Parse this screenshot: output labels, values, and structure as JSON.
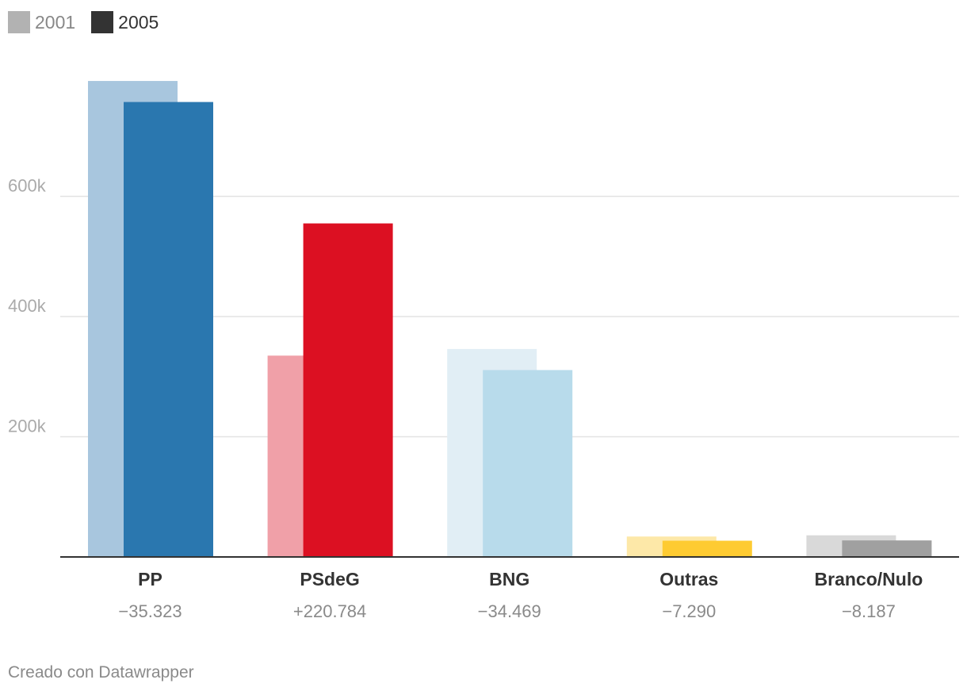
{
  "chart_data": {
    "type": "bar",
    "categories": [
      "PP",
      "PSdeG",
      "BNG",
      "Outras",
      "Branco/Nulo"
    ],
    "change_labels": [
      "−35.323",
      "+220.784",
      "−34.469",
      "−7.290",
      "−8.187"
    ],
    "series": [
      {
        "name": "2001",
        "values": [
          792000,
          335000,
          346000,
          34000,
          36000
        ]
      },
      {
        "name": "2005",
        "values": [
          757000,
          555000,
          311000,
          27000,
          27500
        ]
      }
    ],
    "colors_2001": [
      "#a8c6de",
      "#f0a0a8",
      "#e1eef5",
      "#fde8a8",
      "#d9d9d9"
    ],
    "colors_2005": [
      "#2a77af",
      "#dc1022",
      "#b8dbeb",
      "#fecb32",
      "#a0a0a0"
    ],
    "legend_colors": [
      "#b2b2b2",
      "#333333"
    ],
    "yticks": [
      200000,
      400000,
      600000
    ],
    "ytick_labels": [
      "200k",
      "400k",
      "600k"
    ],
    "ylim": [
      0,
      830000
    ],
    "grid": true,
    "legend_position": "top-left",
    "credit": "Creado con Datawrapper"
  }
}
